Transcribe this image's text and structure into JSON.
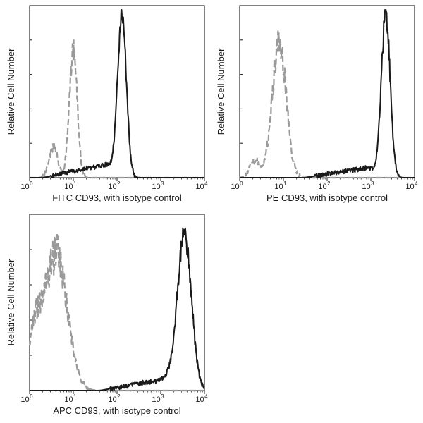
{
  "chart_data": [
    {
      "type": "line",
      "title": "",
      "xlabel": "FITC CD93, with isotype control",
      "ylabel": "Relative Cell Number",
      "xscale": "log",
      "xlim": [
        1,
        10000
      ],
      "xticks": [
        {
          "base": "10",
          "exp": "0"
        },
        {
          "base": "10",
          "exp": "1"
        },
        {
          "base": "10",
          "exp": "2"
        },
        {
          "base": "10",
          "exp": "3"
        },
        {
          "base": "10",
          "exp": "4"
        }
      ],
      "series": [
        {
          "name": "isotype control",
          "style": "dashed",
          "color": "#9a9a9a",
          "peak": 10,
          "sigma": 0.09,
          "height": 0.78,
          "noise": 0.1,
          "shoulder": {
            "at": 3.5,
            "height": 0.18,
            "sigma": 0.1
          }
        },
        {
          "name": "CD93",
          "style": "solid",
          "color": "#1a1a1a",
          "peak": 130,
          "sigma": 0.1,
          "height": 0.97,
          "noise": 0.05,
          "lowtail": {
            "from": 2,
            "to": 60,
            "height": 0.08
          }
        }
      ]
    },
    {
      "type": "line",
      "title": "",
      "xlabel": "PE CD93, with isotype control",
      "ylabel": "Relative Cell Number",
      "xscale": "log",
      "xlim": [
        1,
        10000
      ],
      "xticks": [
        {
          "base": "10",
          "exp": "0"
        },
        {
          "base": "10",
          "exp": "1"
        },
        {
          "base": "10",
          "exp": "2"
        },
        {
          "base": "10",
          "exp": "3"
        },
        {
          "base": "10",
          "exp": "4"
        }
      ],
      "series": [
        {
          "name": "isotype control",
          "style": "dashed",
          "color": "#9a9a9a",
          "peak": 8,
          "sigma": 0.16,
          "height": 0.8,
          "noise": 0.12,
          "shoulder": {
            "at": 2.2,
            "height": 0.1,
            "sigma": 0.12
          }
        },
        {
          "name": "CD93",
          "style": "solid",
          "color": "#1a1a1a",
          "peak": 2200,
          "sigma": 0.1,
          "height": 0.97,
          "noise": 0.06,
          "lowtail": {
            "from": 30,
            "to": 900,
            "height": 0.06
          }
        }
      ]
    },
    {
      "type": "line",
      "title": "",
      "xlabel": "APC CD93, with isotype control",
      "ylabel": "Relative Cell Number",
      "xscale": "log",
      "xlim": [
        1,
        10000
      ],
      "xticks": [
        {
          "base": "10",
          "exp": "0"
        },
        {
          "base": "10",
          "exp": "1"
        },
        {
          "base": "10",
          "exp": "2"
        },
        {
          "base": "10",
          "exp": "3"
        },
        {
          "base": "10",
          "exp": "4"
        }
      ],
      "series": [
        {
          "name": "isotype control",
          "style": "dashed",
          "color": "#9a9a9a",
          "peak": 4,
          "sigma": 0.26,
          "height": 0.8,
          "noise": 0.14,
          "shoulder": {
            "at": 1.3,
            "height": 0.3,
            "sigma": 0.15
          }
        },
        {
          "name": "CD93",
          "style": "solid",
          "color": "#1a1a1a",
          "peak": 3500,
          "sigma": 0.16,
          "height": 0.9,
          "noise": 0.08,
          "lowtail": {
            "from": 40,
            "to": 1500,
            "height": 0.07
          }
        }
      ]
    }
  ]
}
